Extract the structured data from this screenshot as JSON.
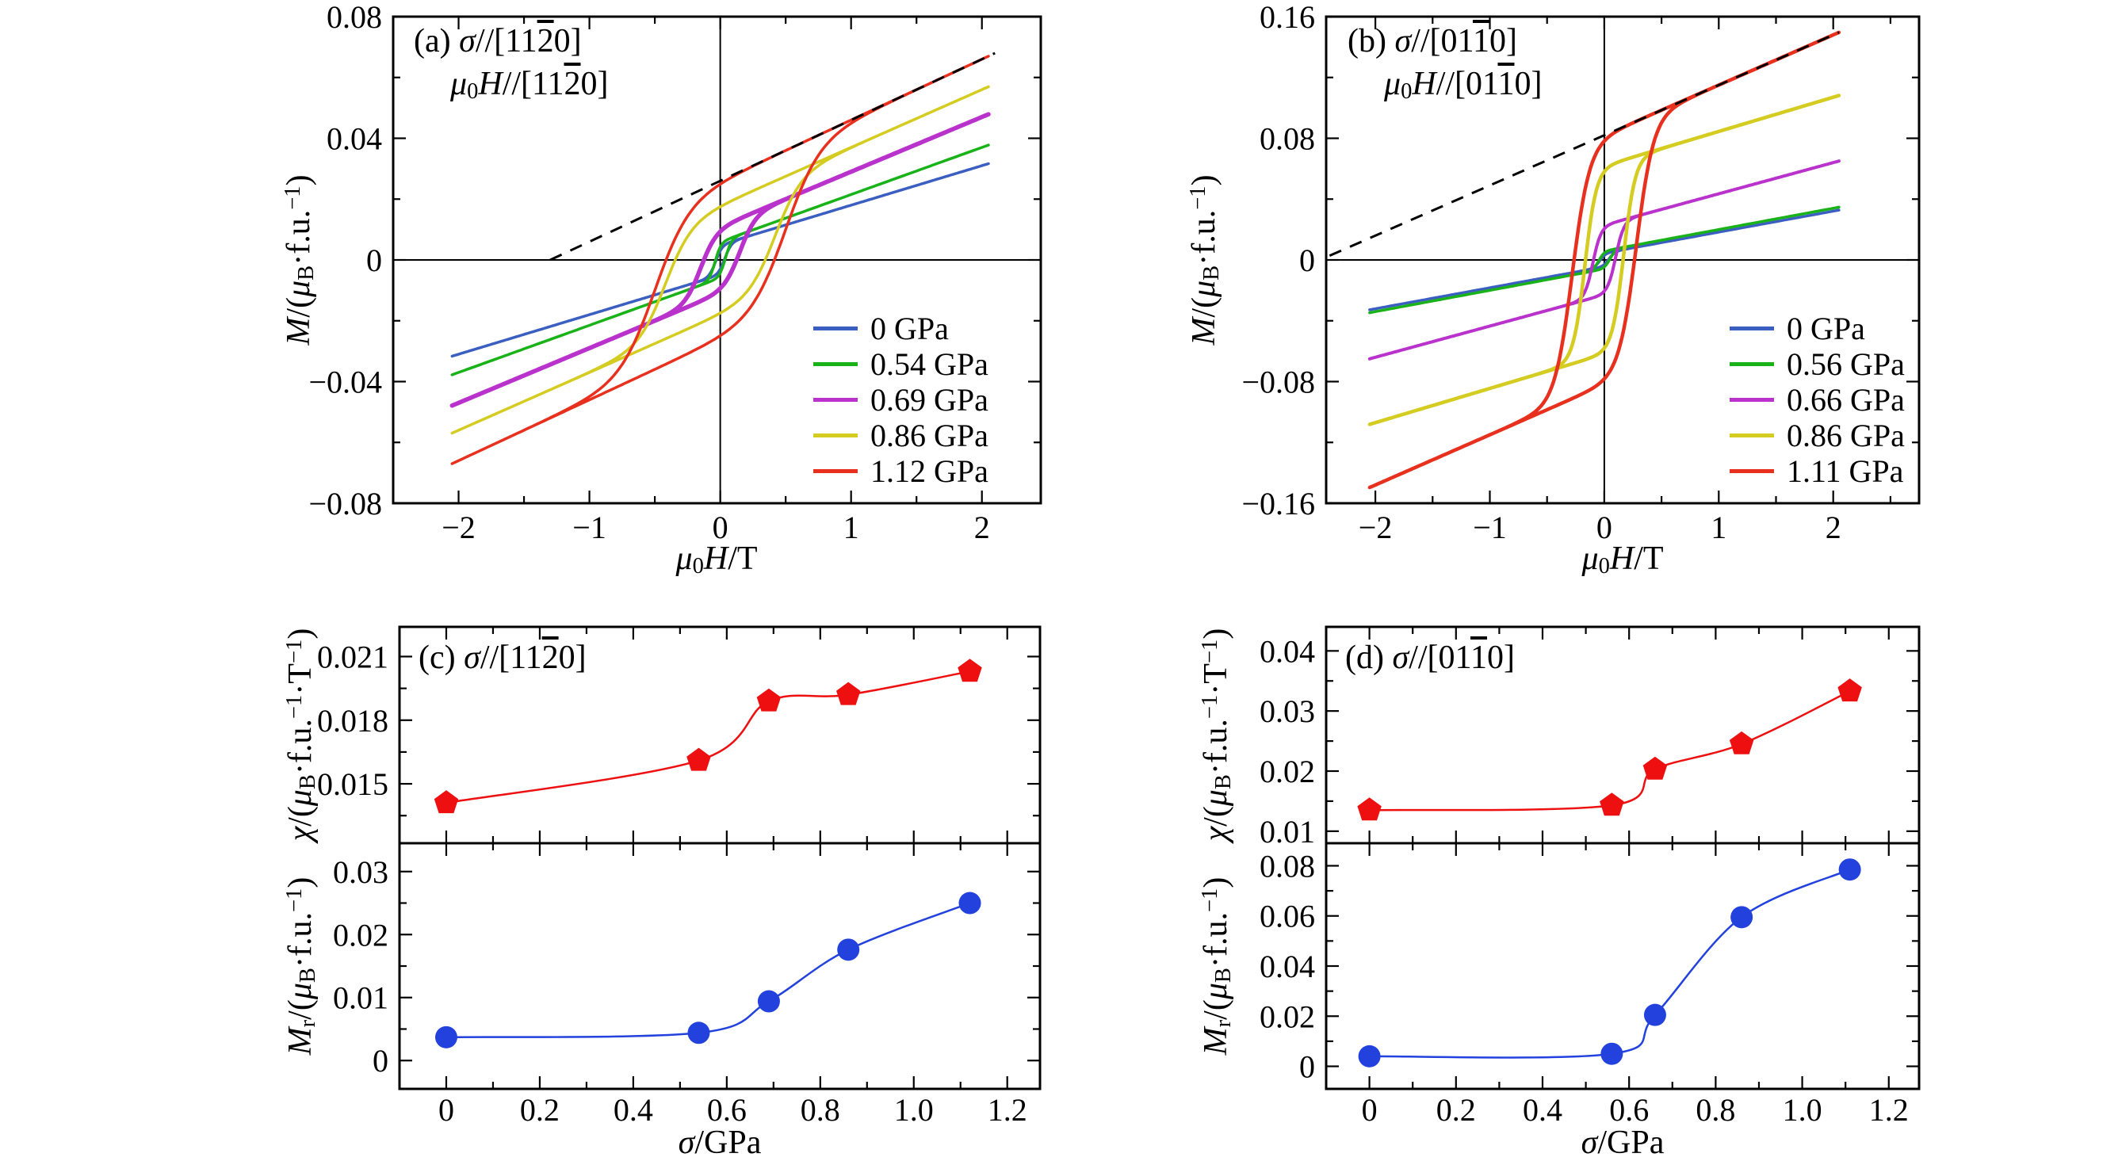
{
  "figure": {
    "background": "#ffffff",
    "labels": {
      "ab_y": [
        {
          "t": "M",
          "s": "i"
        },
        {
          "t": "/("
        },
        {
          "t": "μ",
          "s": "i"
        },
        {
          "t": "B",
          "s": "sub"
        },
        {
          "t": "·f.u."
        },
        {
          "t": "−1",
          "s": "sup"
        },
        {
          "t": ")"
        }
      ],
      "ab_x": [
        {
          "t": "μ",
          "s": "i"
        },
        {
          "t": "0",
          "s": "sub"
        },
        {
          "t": "H",
          "s": "i"
        },
        {
          "t": "/T"
        }
      ],
      "chi_y": [
        {
          "t": "χ",
          "s": "i"
        },
        {
          "t": "/("
        },
        {
          "t": "μ",
          "s": "i"
        },
        {
          "t": "B",
          "s": "sub"
        },
        {
          "t": "·f.u."
        },
        {
          "t": "−1",
          "s": "sup"
        },
        {
          "t": "·T"
        },
        {
          "t": "−1",
          "s": "sup"
        },
        {
          "t": ")"
        }
      ],
      "mr_y": [
        {
          "t": "M",
          "s": "i"
        },
        {
          "t": "r",
          "s": "sub"
        },
        {
          "t": "/("
        },
        {
          "t": "μ",
          "s": "i"
        },
        {
          "t": "B",
          "s": "sub"
        },
        {
          "t": "·f.u."
        },
        {
          "t": "−1",
          "s": "sup"
        },
        {
          "t": ")"
        }
      ],
      "sigma_x": [
        {
          "t": "σ",
          "s": "i"
        },
        {
          "t": "/GPa"
        }
      ]
    },
    "titles": {
      "a1": [
        {
          "t": "(a) "
        },
        {
          "t": "σ",
          "s": "i"
        },
        {
          "t": "//[11"
        },
        {
          "t": "2",
          "s": "bar"
        },
        {
          "t": "0]"
        }
      ],
      "a2": [
        {
          "t": "μ",
          "s": "i"
        },
        {
          "t": "0",
          "s": "sub"
        },
        {
          "t": "H",
          "s": "i"
        },
        {
          "t": "//[11"
        },
        {
          "t": "2",
          "s": "bar"
        },
        {
          "t": "0]"
        }
      ],
      "b1": [
        {
          "t": "(b) "
        },
        {
          "t": "σ",
          "s": "i"
        },
        {
          "t": "//[01"
        },
        {
          "t": "1",
          "s": "bar"
        },
        {
          "t": "0]"
        }
      ],
      "b2": [
        {
          "t": "μ",
          "s": "i"
        },
        {
          "t": "0",
          "s": "sub"
        },
        {
          "t": "H",
          "s": "i"
        },
        {
          "t": "//[01"
        },
        {
          "t": "1",
          "s": "bar"
        },
        {
          "t": "0]"
        }
      ],
      "c": [
        {
          "t": "(c) "
        },
        {
          "t": "σ",
          "s": "i"
        },
        {
          "t": "//[11"
        },
        {
          "t": "2",
          "s": "bar"
        },
        {
          "t": "0]"
        }
      ],
      "d": [
        {
          "t": "(d) "
        },
        {
          "t": "σ",
          "s": "i"
        },
        {
          "t": "//[01"
        },
        {
          "t": "1",
          "s": "bar"
        },
        {
          "t": "0]"
        }
      ]
    }
  },
  "chart_data": [
    {
      "id": "a",
      "type": "line",
      "subtype": "hysteresis-loops",
      "x_range": [
        -2.5,
        2.45
      ],
      "y_range": [
        -0.08,
        0.08
      ],
      "x_ticks": [
        {
          "v": -2,
          "l": "−2"
        },
        {
          "v": -1,
          "l": "−1"
        },
        {
          "v": 0,
          "l": "0"
        },
        {
          "v": 1,
          "l": "1"
        },
        {
          "v": 2,
          "l": "2"
        }
      ],
      "y_ticks": [
        {
          "v": -0.08,
          "l": "−0.08"
        },
        {
          "v": -0.04,
          "l": "−0.04"
        },
        {
          "v": 0,
          "l": "0"
        },
        {
          "v": 0.04,
          "l": "0.04"
        },
        {
          "v": 0.08,
          "l": "0.08"
        }
      ],
      "x_minor_step": 0.5,
      "y_minor_step": 0.02,
      "h_max": 2.05,
      "series": [
        {
          "label": "0 GPa",
          "color": "#3b5fc0",
          "lw": 3.5,
          "slope": 0.013,
          "ms": 0.005,
          "hc": 0.035,
          "w": 0.05,
          "m_at_2T": 0.031,
          "remanence": 0.0037
        },
        {
          "label": "0.54 GPa",
          "color": "#19b219",
          "lw": 3.5,
          "slope": 0.0155,
          "ms": 0.006,
          "hc": 0.04,
          "w": 0.045,
          "m_at_2T": 0.037,
          "remanence": 0.0045
        },
        {
          "label": "0.69 GPa",
          "color": "#b932cc",
          "lw": 5.5,
          "slope": 0.018,
          "ms": 0.011,
          "hc": 0.15,
          "w": 0.12,
          "m_at_2T": 0.047,
          "remanence": 0.0094
        },
        {
          "label": "0.86 GPa",
          "color": "#d4cc20",
          "lw": 3.5,
          "slope": 0.019,
          "ms": 0.018,
          "hc": 0.42,
          "w": 0.2,
          "m_at_2T": 0.056,
          "remanence": 0.0176
        },
        {
          "label": "1.12 GPa",
          "color": "#e8301e",
          "lw": 3.5,
          "slope": 0.02,
          "ms": 0.026,
          "hc": 0.5,
          "w": 0.26,
          "m_at_2T": 0.066,
          "remanence": 0.025
        }
      ],
      "dashed_line": {
        "slope": 0.02,
        "intercept": 0.026,
        "x1": -1.3,
        "x2": 2.1,
        "color": "#000000"
      }
    },
    {
      "id": "b",
      "type": "line",
      "subtype": "hysteresis-loops",
      "x_range": [
        -2.43,
        2.75
      ],
      "y_range": [
        -0.16,
        0.16
      ],
      "x_ticks": [
        {
          "v": -2,
          "l": "−2"
        },
        {
          "v": -1,
          "l": "−1"
        },
        {
          "v": 0,
          "l": "0"
        },
        {
          "v": 1,
          "l": "1"
        },
        {
          "v": 2,
          "l": "2"
        }
      ],
      "y_ticks": [
        {
          "v": -0.16,
          "l": "−0.16"
        },
        {
          "v": -0.08,
          "l": "−0.08"
        },
        {
          "v": 0,
          "l": "0"
        },
        {
          "v": 0.08,
          "l": "0.08"
        },
        {
          "v": 0.16,
          "l": "0.16"
        }
      ],
      "x_minor_step": 0.5,
      "y_minor_step": 0.04,
      "h_max": 2.05,
      "series": [
        {
          "label": "0 GPa",
          "color": "#3b5fc0",
          "lw": 3.5,
          "slope": 0.0138,
          "ms": 0.0045,
          "hc": 0.04,
          "w": 0.05,
          "m_at_2T": 0.032,
          "remanence": 0.004
        },
        {
          "label": "0.56 GPa",
          "color": "#19b219",
          "lw": 3.5,
          "slope": 0.014,
          "ms": 0.006,
          "hc": 0.05,
          "w": 0.05,
          "m_at_2T": 0.034,
          "remanence": 0.005
        },
        {
          "label": "0.66 GPa",
          "color": "#b932cc",
          "lw": 4.0,
          "slope": 0.0205,
          "ms": 0.023,
          "hc": 0.1,
          "w": 0.07,
          "m_at_2T": 0.064,
          "remanence": 0.0205
        },
        {
          "label": "0.86 GPa",
          "color": "#d4cc20",
          "lw": 4.5,
          "slope": 0.0225,
          "ms": 0.062,
          "hc": 0.17,
          "w": 0.1,
          "m_at_2T": 0.107,
          "remanence": 0.059
        },
        {
          "label": "1.11 GPa",
          "color": "#e8301e",
          "lw": 4.5,
          "slope": 0.033,
          "ms": 0.082,
          "hc": 0.28,
          "w": 0.15,
          "m_at_2T": 0.148,
          "remanence": 0.0785
        }
      ],
      "dashed_line": {
        "slope": 0.033,
        "intercept": 0.082,
        "x1": -2.4,
        "x2": 2.05,
        "color": "#000000"
      }
    },
    {
      "id": "c",
      "type": "scatter",
      "subtype": "pressure-dependence-stacked",
      "x_range": [
        -0.1,
        1.27
      ],
      "x_ticks": [
        {
          "v": 0,
          "l": "0"
        },
        {
          "v": 0.2,
          "l": "0.2"
        },
        {
          "v": 0.4,
          "l": "0.4"
        },
        {
          "v": 0.6,
          "l": "0.6"
        },
        {
          "v": 0.8,
          "l": "0.8"
        },
        {
          "v": 1,
          "l": "1.0"
        },
        {
          "v": 1.2,
          "l": "1.2"
        }
      ],
      "x_minor_step": 0.1,
      "subplots": [
        {
          "name": "chi",
          "marker": "pentagon",
          "color": "#ee1010",
          "line_color": "#ee1010",
          "y_range": [
            0.0122,
            0.0224
          ],
          "y_ticks": [
            {
              "v": 0.015,
              "l": "0.015"
            },
            {
              "v": 0.018,
              "l": "0.018"
            },
            {
              "v": 0.021,
              "l": "0.021"
            }
          ],
          "y_minor_step": 0.0015,
          "x": [
            0,
            0.54,
            0.69,
            0.86,
            1.12
          ],
          "y": [
            0.0141,
            0.0161,
            0.0189,
            0.0192,
            0.0203
          ]
        },
        {
          "name": "mr",
          "marker": "circle",
          "color": "#2342dd",
          "line_color": "#2342dd",
          "y_range": [
            -0.0045,
            0.0345
          ],
          "y_ticks": [
            {
              "v": 0,
              "l": "0"
            },
            {
              "v": 0.01,
              "l": "0.01"
            },
            {
              "v": 0.02,
              "l": "0.02"
            },
            {
              "v": 0.03,
              "l": "0.03"
            }
          ],
          "y_minor_step": 0.005,
          "x": [
            0,
            0.54,
            0.69,
            0.86,
            1.12
          ],
          "y": [
            0.0037,
            0.0044,
            0.0094,
            0.0176,
            0.025
          ]
        }
      ]
    },
    {
      "id": "d",
      "type": "scatter",
      "subtype": "pressure-dependence-stacked",
      "x_range": [
        -0.1,
        1.27
      ],
      "x_ticks": [
        {
          "v": 0,
          "l": "0"
        },
        {
          "v": 0.2,
          "l": "0.2"
        },
        {
          "v": 0.4,
          "l": "0.4"
        },
        {
          "v": 0.6,
          "l": "0.6"
        },
        {
          "v": 0.8,
          "l": "0.8"
        },
        {
          "v": 1,
          "l": "1.0"
        },
        {
          "v": 1.2,
          "l": "1.2"
        }
      ],
      "x_minor_step": 0.1,
      "subplots": [
        {
          "name": "chi",
          "marker": "pentagon",
          "color": "#ee1010",
          "line_color": "#ee1010",
          "y_range": [
            0.008,
            0.044
          ],
          "y_ticks": [
            {
              "v": 0.01,
              "l": "0.01"
            },
            {
              "v": 0.02,
              "l": "0.02"
            },
            {
              "v": 0.03,
              "l": "0.03"
            },
            {
              "v": 0.04,
              "l": "0.04"
            }
          ],
          "y_minor_step": 0.005,
          "x": [
            0,
            0.56,
            0.66,
            0.86,
            1.11
          ],
          "y": [
            0.0135,
            0.0143,
            0.0203,
            0.0245,
            0.0333
          ]
        },
        {
          "name": "mr",
          "marker": "circle",
          "color": "#2342dd",
          "line_color": "#2342dd",
          "y_range": [
            -0.009,
            0.089
          ],
          "y_ticks": [
            {
              "v": 0,
              "l": "0"
            },
            {
              "v": 0.02,
              "l": "0.02"
            },
            {
              "v": 0.04,
              "l": "0.04"
            },
            {
              "v": 0.06,
              "l": "0.06"
            },
            {
              "v": 0.08,
              "l": "0.08"
            }
          ],
          "y_minor_step": 0.01,
          "x": [
            0,
            0.56,
            0.66,
            0.86,
            1.11
          ],
          "y": [
            0.004,
            0.005,
            0.0205,
            0.0595,
            0.0785
          ]
        }
      ]
    }
  ]
}
